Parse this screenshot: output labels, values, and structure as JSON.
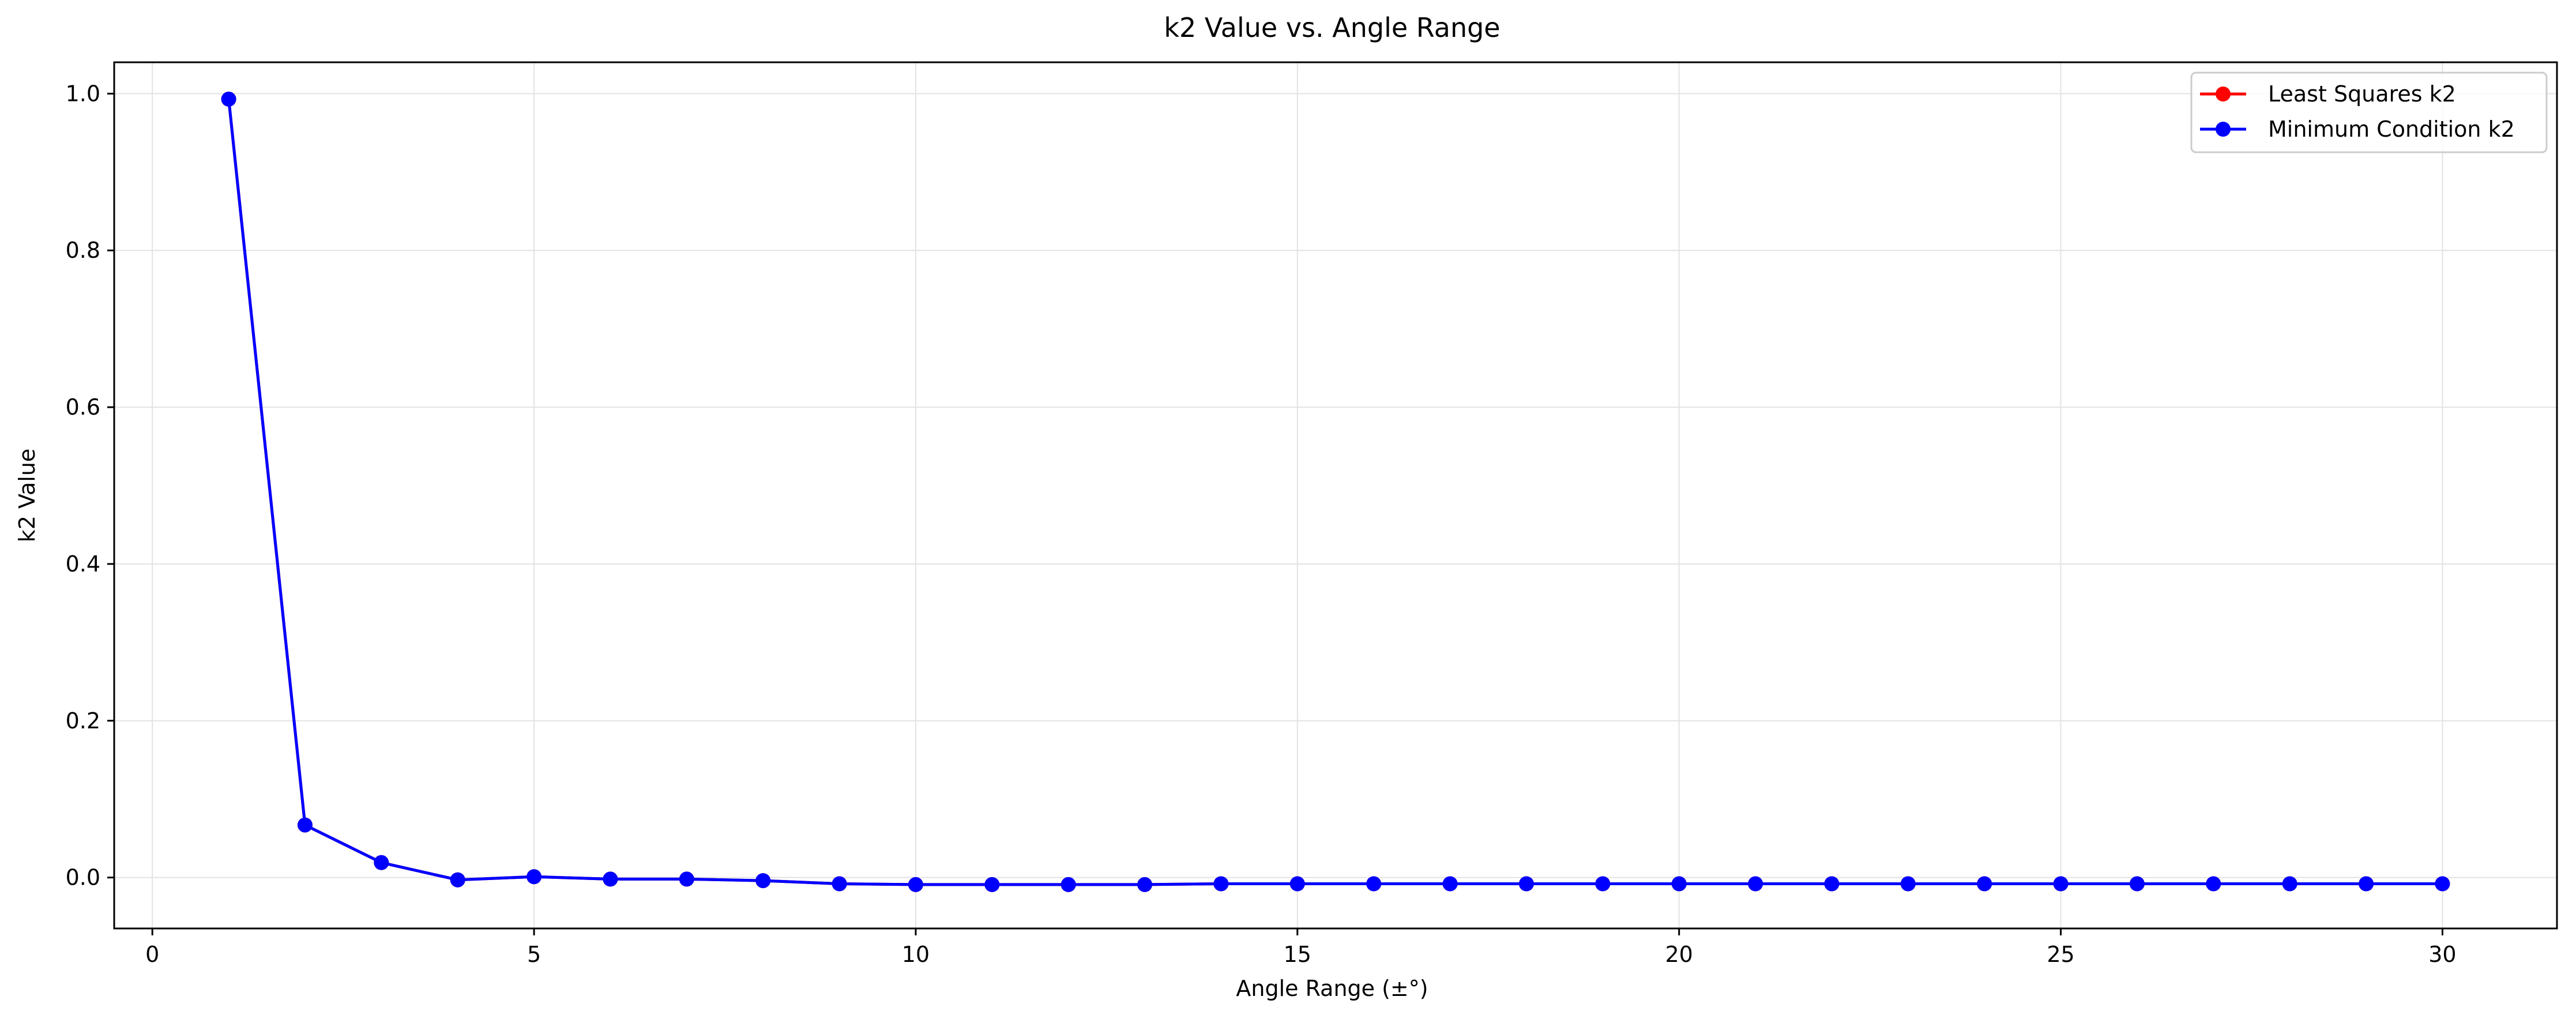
{
  "chart_data": {
    "type": "line",
    "title": "k2 Value vs. Angle Range",
    "xlabel": "Angle Range (±°)",
    "ylabel": "k2 Value",
    "xlim": [
      -0.5,
      31.5
    ],
    "ylim": [
      -0.065,
      1.04
    ],
    "xticks": [
      "0",
      "5",
      "10",
      "15",
      "20",
      "25",
      "30"
    ],
    "yticks": [
      "0.0",
      "0.2",
      "0.4",
      "0.6",
      "0.8",
      "1.0"
    ],
    "grid": true,
    "legend_position": "top-right",
    "x": [
      1,
      2,
      3,
      4,
      5,
      6,
      7,
      8,
      9,
      10,
      11,
      12,
      13,
      14,
      15,
      16,
      17,
      18,
      19,
      20,
      21,
      22,
      23,
      24,
      25,
      26,
      27,
      28,
      29,
      30
    ],
    "series": [
      {
        "name": "Least Squares k2",
        "color": "#ff0000",
        "marker": "circle",
        "values": [
          0.993,
          0.067,
          0.019,
          -0.003,
          0.001,
          -0.002,
          -0.002,
          -0.004,
          -0.008,
          -0.009,
          -0.009,
          -0.009,
          -0.009,
          -0.008,
          -0.008,
          -0.008,
          -0.008,
          -0.008,
          -0.008,
          -0.008,
          -0.008,
          -0.008,
          -0.008,
          -0.008,
          -0.008,
          -0.008,
          -0.008,
          -0.008,
          -0.008,
          -0.008
        ]
      },
      {
        "name": "Minimum Condition k2",
        "color": "#0000ff",
        "marker": "circle",
        "values": [
          0.993,
          0.067,
          0.019,
          -0.003,
          0.001,
          -0.002,
          -0.002,
          -0.004,
          -0.008,
          -0.009,
          -0.009,
          -0.009,
          -0.009,
          -0.008,
          -0.008,
          -0.008,
          -0.008,
          -0.008,
          -0.008,
          -0.008,
          -0.008,
          -0.008,
          -0.008,
          -0.008,
          -0.008,
          -0.008,
          -0.008,
          -0.008,
          -0.008,
          -0.008
        ]
      }
    ]
  }
}
